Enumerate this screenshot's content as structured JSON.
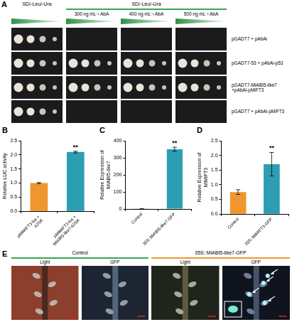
{
  "panel_a": {
    "letter": "A",
    "groups": [
      {
        "title": "SD/-Leu/-Ura",
        "columns": []
      },
      {
        "title": "SD/-Leu/-Ura",
        "columns": [
          "300 ng mL⁻¹ AbA",
          "400 ng mL⁻¹ AbA",
          "500 ng mL⁻¹ AbA"
        ]
      }
    ],
    "rows": [
      {
        "label": "pGADT7 + pAbAi",
        "growth": [
          true,
          false,
          false,
          false
        ]
      },
      {
        "label": "pGADT7-53 + pAbAi-p53",
        "growth": [
          true,
          true,
          true,
          true
        ]
      },
      {
        "label": "pGADT7-MiABI5-like7 +pAbAi-pMiFT3",
        "growth": [
          true,
          true,
          true,
          true
        ]
      },
      {
        "label": "pGADT7 + pAbAi-pMiFT3",
        "growth": [
          true,
          false,
          false,
          false
        ]
      }
    ]
  },
  "chart_data": [
    {
      "panel": "B",
      "type": "bar",
      "categories": [
        "pMiMIFT3-luc + 62SK",
        "pMiMIFT3-luc + MiABI5-like7-62SK"
      ],
      "values": [
        1.0,
        2.1
      ],
      "errors": [
        0.02,
        0.03
      ],
      "colors": [
        "#f0962e",
        "#2b9eb3"
      ],
      "y_label": "Relative LUC activity",
      "ylim": [
        0,
        2.5
      ],
      "yticks": [
        {
          "value": 0,
          "label": "0.0"
        },
        {
          "value": 0.5,
          "label": "0.5"
        },
        {
          "value": 1,
          "label": "1.0"
        },
        {
          "value": 1.5,
          "label": "1.5"
        },
        {
          "value": 2,
          "label": "2.0"
        },
        {
          "value": 2.5,
          "label": "2.5"
        }
      ],
      "annotations": [
        {
          "category": "pMiMIFT3-luc + MiABI5-like7-62SK",
          "text": "**"
        }
      ],
      "grid": false
    },
    {
      "panel": "C",
      "type": "bar",
      "categories": [
        "Control",
        "35S::MiABI5-like7-GFP"
      ],
      "values": [
        1,
        350
      ],
      "errors": [
        0.2,
        12
      ],
      "colors": [
        "#f0962e",
        "#2b9eb3"
      ],
      "y_label": "Relative Expression of MiABI5-like7",
      "ylim": [
        0,
        400
      ],
      "yticks": [
        0,
        100,
        200,
        300,
        400
      ],
      "annotations": [
        {
          "category": "35S::MiABI5-like7-GFP",
          "text": "**"
        }
      ],
      "grid": false
    },
    {
      "panel": "D",
      "type": "bar",
      "categories": [
        "Control",
        "35S::MiMIFT3-GFP"
      ],
      "values": [
        0.75,
        1.7
      ],
      "errors": [
        0.08,
        0.4
      ],
      "colors": [
        "#f0962e",
        "#2b9eb3"
      ],
      "y_label": "Relative Expression of MiMIFT3",
      "ylim": [
        0,
        2.5
      ],
      "yticks": [
        {
          "value": 0,
          "label": "0.0"
        },
        {
          "value": 0.5,
          "label": "0.5"
        },
        {
          "value": 1,
          "label": "1.0"
        },
        {
          "value": 1.5,
          "label": "1.5"
        },
        {
          "value": 2,
          "label": "2.0"
        },
        {
          "value": 2.5,
          "label": "2.5"
        }
      ],
      "annotations": [
        {
          "category": "35S::MiMIFT3-GFP",
          "text": "**"
        }
      ],
      "grid": false
    }
  ],
  "panel_e": {
    "letter": "E",
    "groups": [
      {
        "title": "Control",
        "color": "#3aa655",
        "images": [
          "Light",
          "GFP"
        ]
      },
      {
        "title": "35S::MiABI5-like7-GFP",
        "color": "#f0962e",
        "images": [
          "Light",
          "GFP"
        ]
      }
    ]
  }
}
